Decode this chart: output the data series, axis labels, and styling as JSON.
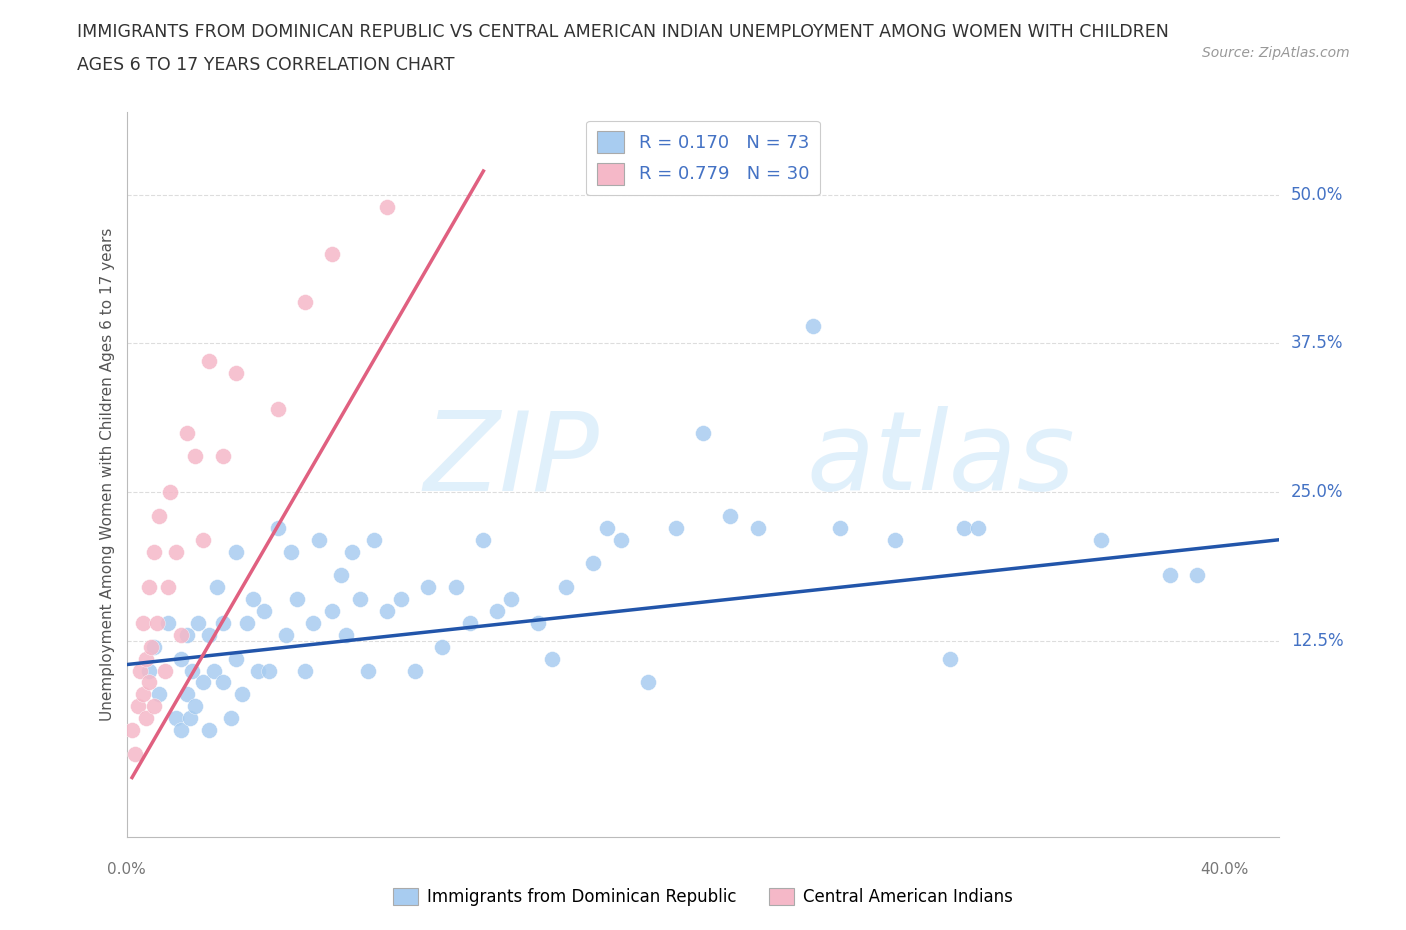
{
  "title_line1": "IMMIGRANTS FROM DOMINICAN REPUBLIC VS CENTRAL AMERICAN INDIAN UNEMPLOYMENT AMONG WOMEN WITH CHILDREN",
  "title_line2": "AGES 6 TO 17 YEARS CORRELATION CHART",
  "source": "Source: ZipAtlas.com",
  "ylabel": "Unemployment Among Women with Children Ages 6 to 17 years",
  "ytick_labels": [
    "12.5%",
    "25.0%",
    "37.5%",
    "50.0%"
  ],
  "ytick_vals": [
    0.125,
    0.25,
    0.375,
    0.5
  ],
  "xlim": [
    0.0,
    0.42
  ],
  "ylim": [
    -0.04,
    0.57
  ],
  "legend1_R": "0.170",
  "legend1_N": "73",
  "legend2_R": "0.779",
  "legend2_N": "30",
  "color_blue": "#A8CCF0",
  "color_pink": "#F5B8C8",
  "color_blue_line": "#2255AA",
  "color_pink_line": "#E06080",
  "blue_x": [
    0.008,
    0.01,
    0.012,
    0.015,
    0.018,
    0.02,
    0.02,
    0.022,
    0.022,
    0.023,
    0.024,
    0.025,
    0.026,
    0.028,
    0.03,
    0.03,
    0.032,
    0.033,
    0.035,
    0.035,
    0.038,
    0.04,
    0.04,
    0.042,
    0.044,
    0.046,
    0.048,
    0.05,
    0.052,
    0.055,
    0.058,
    0.06,
    0.062,
    0.065,
    0.068,
    0.07,
    0.075,
    0.078,
    0.08,
    0.082,
    0.085,
    0.088,
    0.09,
    0.095,
    0.1,
    0.105,
    0.11,
    0.115,
    0.12,
    0.125,
    0.13,
    0.135,
    0.14,
    0.15,
    0.155,
    0.16,
    0.17,
    0.175,
    0.18,
    0.19,
    0.2,
    0.21,
    0.22,
    0.23,
    0.25,
    0.26,
    0.28,
    0.3,
    0.305,
    0.31,
    0.355,
    0.38,
    0.39
  ],
  "blue_y": [
    0.1,
    0.12,
    0.08,
    0.14,
    0.06,
    0.05,
    0.11,
    0.08,
    0.13,
    0.06,
    0.1,
    0.07,
    0.14,
    0.09,
    0.13,
    0.05,
    0.1,
    0.17,
    0.09,
    0.14,
    0.06,
    0.11,
    0.2,
    0.08,
    0.14,
    0.16,
    0.1,
    0.15,
    0.1,
    0.22,
    0.13,
    0.2,
    0.16,
    0.1,
    0.14,
    0.21,
    0.15,
    0.18,
    0.13,
    0.2,
    0.16,
    0.1,
    0.21,
    0.15,
    0.16,
    0.1,
    0.17,
    0.12,
    0.17,
    0.14,
    0.21,
    0.15,
    0.16,
    0.14,
    0.11,
    0.17,
    0.19,
    0.22,
    0.21,
    0.09,
    0.22,
    0.3,
    0.23,
    0.22,
    0.39,
    0.22,
    0.21,
    0.11,
    0.22,
    0.22,
    0.21,
    0.18,
    0.18
  ],
  "pink_x": [
    0.002,
    0.003,
    0.004,
    0.005,
    0.006,
    0.006,
    0.007,
    0.007,
    0.008,
    0.008,
    0.009,
    0.01,
    0.01,
    0.011,
    0.012,
    0.014,
    0.015,
    0.016,
    0.018,
    0.02,
    0.022,
    0.025,
    0.028,
    0.03,
    0.035,
    0.04,
    0.055,
    0.065,
    0.075,
    0.095
  ],
  "pink_y": [
    0.05,
    0.03,
    0.07,
    0.1,
    0.08,
    0.14,
    0.06,
    0.11,
    0.09,
    0.17,
    0.12,
    0.2,
    0.07,
    0.14,
    0.23,
    0.1,
    0.17,
    0.25,
    0.2,
    0.13,
    0.3,
    0.28,
    0.21,
    0.36,
    0.28,
    0.35,
    0.32,
    0.41,
    0.45,
    0.49
  ],
  "blue_trendline_x": [
    0.0,
    0.42
  ],
  "blue_trendline_y": [
    0.105,
    0.21
  ],
  "pink_trendline_x": [
    0.002,
    0.13
  ],
  "pink_trendline_y": [
    0.01,
    0.52
  ]
}
